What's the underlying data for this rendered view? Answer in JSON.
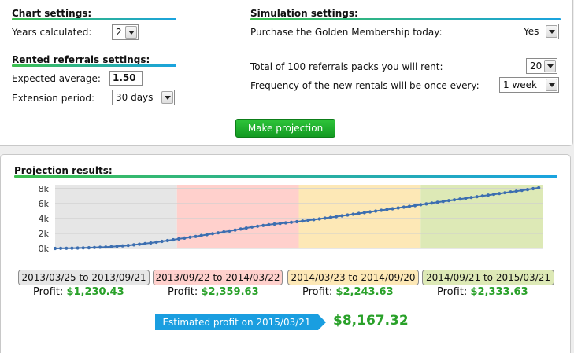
{
  "chart_settings": {
    "title": "Chart settings:",
    "years_label": "Years calculated:",
    "years_value": "2"
  },
  "rented_settings": {
    "title": "Rented referrals settings:",
    "expected_label": "Expected average:",
    "expected_value": "1.50",
    "extension_label": "Extension period:",
    "extension_value": "30 days"
  },
  "simulation_settings": {
    "title": "Simulation settings:",
    "golden_label": "Purchase the Golden Membership today:",
    "golden_value": "Yes",
    "packs_label": "Total of 100 referrals packs you will rent:",
    "packs_value": "20",
    "frequency_label": "Frequency of the new rentals will be once every:",
    "frequency_value": "1 week"
  },
  "make_projection_label": "Make projection",
  "results": {
    "title": "Projection results:",
    "periods": [
      {
        "range": "2013/03/25 to 2013/09/21",
        "profit_label": "Profit:",
        "profit": "$1,230.43",
        "color": "#e6e6e6"
      },
      {
        "range": "2013/09/22 to 2014/03/22",
        "profit_label": "Profit:",
        "profit": "$2,359.63",
        "color": "#ffd0cc"
      },
      {
        "range": "2014/03/23 to 2014/09/20",
        "profit_label": "Profit:",
        "profit": "$2,243.63",
        "color": "#fde8b6"
      },
      {
        "range": "2014/09/21 to 2015/03/21",
        "profit_label": "Profit:",
        "profit": "$2,333.63",
        "color": "#dde9b6"
      }
    ],
    "estimate_label": "Estimated profit on 2015/03/21",
    "estimate_value": "$8,167.32"
  },
  "chart_data": {
    "type": "line",
    "title": "",
    "xlabel": "",
    "ylabel": "",
    "ylim": [
      0,
      8500
    ],
    "yticks": [
      "0k",
      "2k",
      "4k",
      "6k",
      "8k"
    ],
    "ytick_values": [
      0,
      2000,
      4000,
      6000,
      8000
    ],
    "grid": true,
    "bands": [
      {
        "start_week": 0,
        "end_week": 26,
        "color": "#e6e6e6"
      },
      {
        "start_week": 26,
        "end_week": 52,
        "color": "#ffd0cc"
      },
      {
        "start_week": 52,
        "end_week": 78,
        "color": "#fde8b6"
      },
      {
        "start_week": 78,
        "end_week": 104,
        "color": "#dde9b6"
      }
    ],
    "series": [
      {
        "color": "#3c6eb0",
        "x": [
          0,
          4,
          8,
          12,
          16,
          20,
          26,
          30,
          34,
          38,
          42,
          46,
          52,
          56,
          60,
          64,
          68,
          72,
          78,
          82,
          86,
          90,
          94,
          98,
          104
        ],
        "values": [
          0,
          40,
          110,
          230,
          430,
          700,
          1230,
          1600,
          2000,
          2400,
          2850,
          3200,
          3590,
          3900,
          4250,
          4600,
          4950,
          5300,
          5830,
          6200,
          6550,
          6900,
          7250,
          7600,
          8167
        ]
      }
    ]
  }
}
